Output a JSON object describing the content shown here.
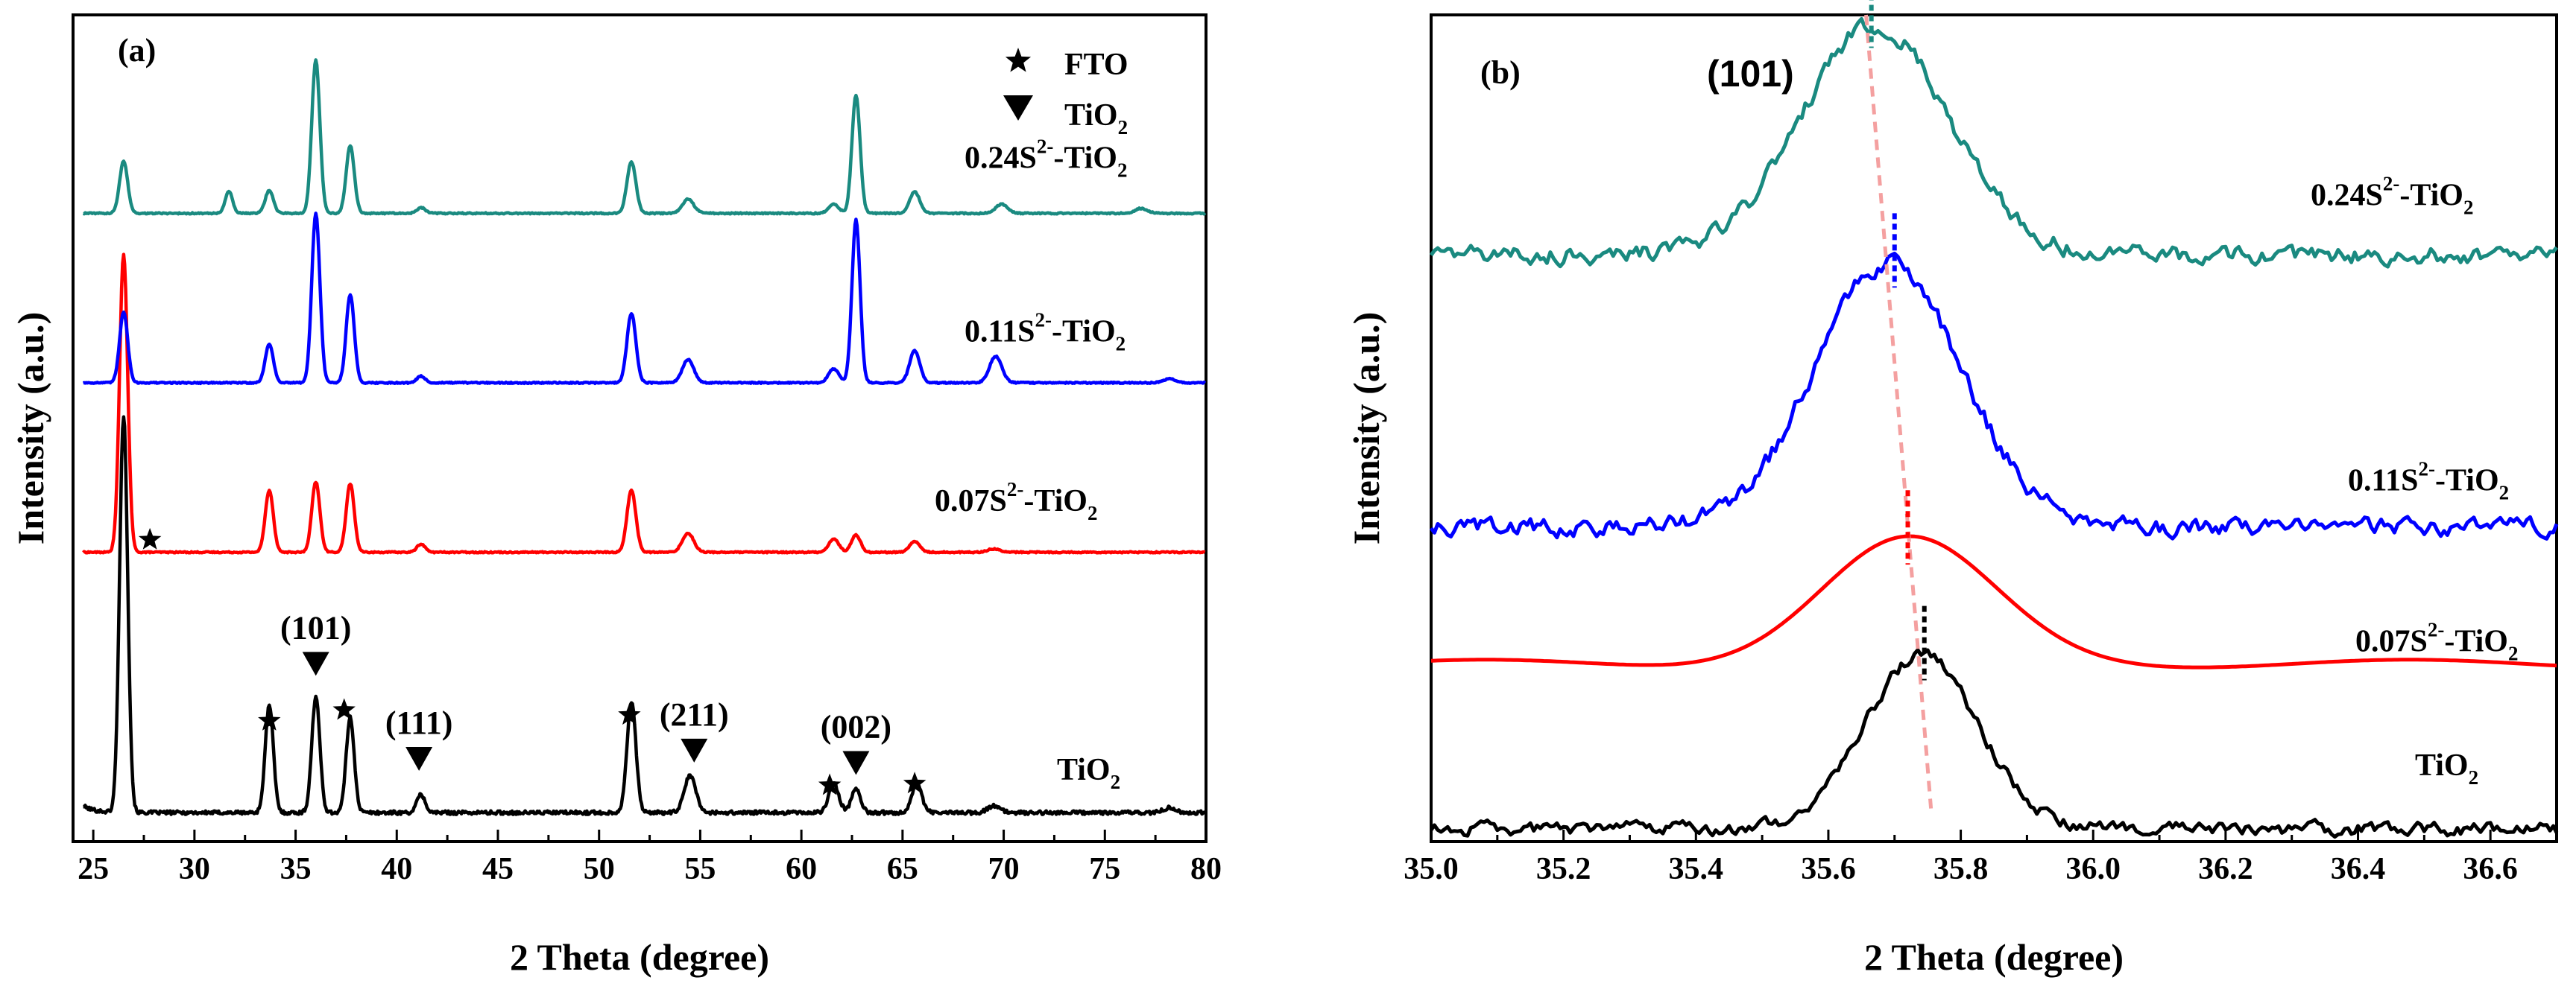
{
  "chart_data": [
    {
      "id": "a",
      "type": "line",
      "panel_label": "(a)",
      "xlabel": "2 Theta (degree)",
      "ylabel": "Intensity (a.u.)",
      "xlim": [
        24,
        80
      ],
      "ylim": [
        0,
        100
      ],
      "xticks": [
        25,
        30,
        35,
        40,
        45,
        50,
        55,
        60,
        65,
        70,
        75,
        80
      ],
      "xtick_labels": [
        "25",
        "30",
        "35",
        "40",
        "45",
        "50",
        "55",
        "60",
        "65",
        "70",
        "75",
        "80"
      ],
      "legend": [
        {
          "marker": "star",
          "label": "FTO"
        },
        {
          "marker": "triangle",
          "label": "TiO",
          "sub": "2"
        }
      ],
      "series": [
        {
          "name": "TiO2",
          "label_parts": {
            "pre": "TiO",
            "sup": "",
            "mid": "",
            "sub": "2"
          },
          "color": "#000000",
          "baseline": 3.5,
          "noise": 0.45,
          "peaks": [
            [
              26.5,
              48,
              0.2
            ],
            [
              33.7,
              13,
              0.2
            ],
            [
              36.0,
              14,
              0.2
            ],
            [
              37.7,
              11.5,
              0.2
            ],
            [
              41.2,
              2.2,
              0.2
            ],
            [
              51.6,
              13.5,
              0.22
            ],
            [
              54.5,
              4.5,
              0.28
            ],
            [
              61.6,
              3.5,
              0.25
            ],
            [
              62.7,
              3,
              0.22
            ],
            [
              65.7,
              3.4,
              0.25
            ],
            [
              69.5,
              0.8,
              0.3
            ],
            [
              78.2,
              0.6,
              0.3
            ]
          ]
        },
        {
          "name": "0.07S2--TiO2",
          "label_parts": {
            "pre": "0.07S",
            "sup": "2-",
            "mid": "-TiO",
            "sub": "2"
          },
          "color": "#ff0000",
          "baseline": 35,
          "noise": 0.15,
          "peaks": [
            [
              26.5,
              36,
              0.2
            ],
            [
              33.7,
              7.5,
              0.2
            ],
            [
              36.0,
              8.5,
              0.2
            ],
            [
              37.7,
              8.3,
              0.2
            ],
            [
              41.2,
              1,
              0.2
            ],
            [
              51.6,
              7.5,
              0.22
            ],
            [
              54.4,
              2.3,
              0.28
            ],
            [
              61.6,
              1.6,
              0.25
            ],
            [
              62.7,
              2.1,
              0.22
            ],
            [
              65.6,
              1.3,
              0.25
            ],
            [
              69.5,
              0.4,
              0.3
            ]
          ]
        },
        {
          "name": "0.11S2--TiO2",
          "label_parts": {
            "pre": "0.11S",
            "sup": "2-",
            "mid": "-TiO",
            "sub": "2"
          },
          "color": "#0000ff",
          "baseline": 55.5,
          "noise": 0.15,
          "peaks": [
            [
              26.5,
              8.6,
              0.2
            ],
            [
              33.7,
              4.7,
              0.2
            ],
            [
              36.0,
              20.5,
              0.2
            ],
            [
              37.7,
              10.7,
              0.2
            ],
            [
              41.2,
              0.8,
              0.2
            ],
            [
              51.6,
              8.4,
              0.22
            ],
            [
              54.4,
              2.8,
              0.28
            ],
            [
              61.6,
              1.7,
              0.25
            ],
            [
              62.7,
              19.7,
              0.2
            ],
            [
              65.6,
              3.9,
              0.25
            ],
            [
              69.6,
              3.2,
              0.3
            ],
            [
              78.2,
              0.5,
              0.3
            ]
          ]
        },
        {
          "name": "0.24S2--TiO2",
          "label_parts": {
            "pre": "0.24S",
            "sup": "2-",
            "mid": "-TiO",
            "sub": "2"
          },
          "color": "#1a8a80",
          "baseline": 76,
          "noise": 0.15,
          "peaks": [
            [
              26.5,
              6.3,
              0.2
            ],
            [
              31.7,
              2.7,
              0.18
            ],
            [
              33.7,
              2.8,
              0.2
            ],
            [
              36.0,
              18.5,
              0.2
            ],
            [
              37.7,
              8.2,
              0.2
            ],
            [
              41.2,
              0.7,
              0.2
            ],
            [
              51.6,
              6.2,
              0.22
            ],
            [
              54.4,
              1.7,
              0.28
            ],
            [
              61.6,
              1.1,
              0.25
            ],
            [
              62.7,
              14.3,
              0.2
            ],
            [
              65.6,
              2.6,
              0.25
            ],
            [
              69.9,
              1.1,
              0.3
            ],
            [
              76.8,
              0.6,
              0.3
            ]
          ]
        }
      ],
      "stars": [
        [
          26.5,
          32,
          36.5
        ],
        [
          33.7,
          14.6
        ],
        [
          37.4,
          15.9
        ],
        [
          51.5,
          15.3
        ],
        [
          61.4,
          6.8
        ],
        [
          65.6,
          7.0
        ]
      ],
      "triangles": [
        {
          "x": 36.0,
          "y": 21.5,
          "label": "(101)"
        },
        {
          "x": 41.1,
          "y": 10.0,
          "label": "(111)"
        },
        {
          "x": 54.7,
          "y": 11.0,
          "label": "(211)"
        },
        {
          "x": 62.7,
          "y": 9.5,
          "label": "(002)"
        }
      ]
    },
    {
      "id": "b",
      "type": "line",
      "panel_label": "(b)",
      "xlabel": "2 Theta (degree)",
      "ylabel": "Intensity (a.u.)",
      "xlim": [
        35.0,
        36.7
      ],
      "ylim": [
        0,
        100
      ],
      "xticks": [
        35.0,
        35.2,
        35.4,
        35.6,
        35.8,
        36.0,
        36.2,
        36.4,
        36.6
      ],
      "xtick_labels": [
        "35.0",
        "35.2",
        "35.4",
        "35.6",
        "35.8",
        "36.0",
        "36.2",
        "36.4",
        "36.6"
      ],
      "annotation": "(101)",
      "series": [
        {
          "name": "TiO2",
          "label_parts": {
            "pre": "TiO",
            "sup": "",
            "mid": "",
            "sub": "2"
          },
          "color": "#000000",
          "baseline": 1.5,
          "noise": 0.6,
          "peak_center": 35.74,
          "peak_height": 21,
          "peak_sigma": 0.085,
          "marker_x": 35.745
        },
        {
          "name": "0.07S2--TiO2",
          "label_parts": {
            "pre": "0.07S",
            "sup": "2-",
            "mid": "-TiO",
            "sub": "2"
          },
          "color": "#ff0000",
          "baseline": 21.5,
          "noise": 0.0,
          "peak_center": 35.72,
          "peak_height": 15,
          "peak_sigma": 0.13,
          "marker_x": 35.72
        },
        {
          "name": "0.11S2--TiO2",
          "label_parts": {
            "pre": "0.11S",
            "sup": "2-",
            "mid": "-TiO",
            "sub": "2"
          },
          "color": "#0000ff",
          "baseline": 38,
          "noise": 0.8,
          "peak_center": 35.69,
          "peak_height": 32,
          "peak_sigma": 0.11,
          "marker_x": 35.7
        },
        {
          "name": "0.24S2--TiO2",
          "label_parts": {
            "pre": "0.24S",
            "sup": "2-",
            "mid": "-TiO",
            "sub": "2"
          },
          "color": "#1a8a80",
          "baseline": 71,
          "noise": 0.8,
          "peak_center": 35.67,
          "peak_height": 28,
          "peak_sigma": 0.11,
          "marker_x": 35.665
        }
      ],
      "trend_line": {
        "color": "#f4a0a0",
        "x_top": 35.657,
        "y_top": 100,
        "x_bottom": 35.755,
        "y_bottom": 4
      }
    }
  ]
}
